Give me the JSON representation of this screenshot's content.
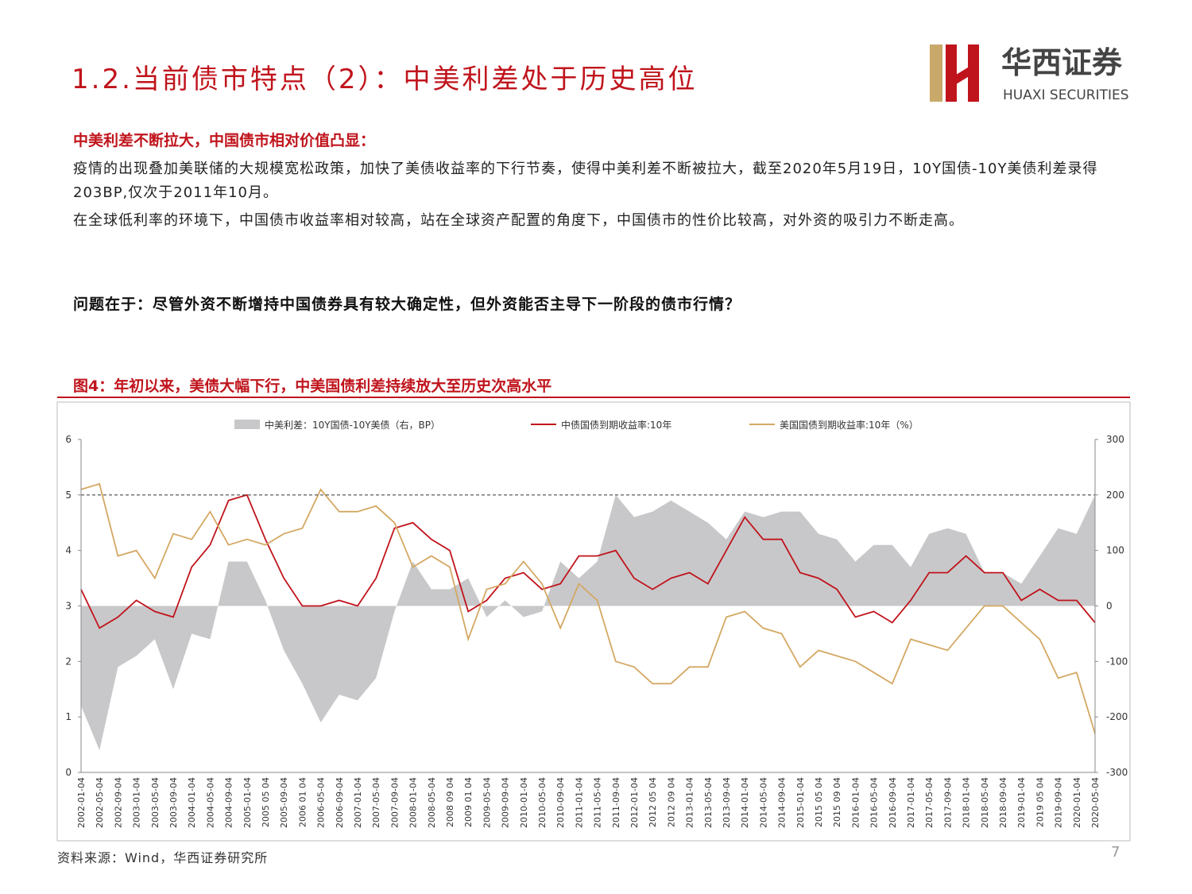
{
  "header": {
    "title": "1.2.当前债市特点（2）：中美利差处于历史高位",
    "logo_cn": "华西证券",
    "logo_en": "HUAXI SECURITIES"
  },
  "body": {
    "headline": "中美利差不断拉大，中国债市相对价值凸显：",
    "paragraphs": [
      "疫情的出现叠加美联储的大规模宽松政策，加快了美债收益率的下行节奏，使得中美利差不断被拉大，截至2020年5月19日，10Y国债-10Y美债利差录得203BP,仅次于2011年10月。",
      "在全球低利率的环境下，中国债市收益率相对较高，站在全球资产配置的角度下，中国债市的性价比较高，对外资的吸引力不断走高。"
    ],
    "question": "问题在于：尽管外资不断增持中国债券具有较大确定性，但外资能否主导下一阶段的债市行情？"
  },
  "figure": {
    "caption": "图4：年初以来，美债大幅下行，中美国债利差持续放大至历史次高水平"
  },
  "chart_data": {
    "type": "line",
    "categories": [
      "2002-01-04",
      "2002-05-04",
      "2002-09-04",
      "2003-01-04",
      "2003-05-04",
      "2003-09-04",
      "2004-01-04",
      "2004-05-04",
      "2004-09-04",
      "2005-01-04",
      "2005 05 04",
      "2005-09-04",
      "2006 01 04",
      "2006-05-04",
      "2006-09-04",
      "2007-01-04",
      "2007-05-04",
      "2007-09-04",
      "2008-01-04",
      "2008-05-04",
      "2008 09 04",
      "2009 01 04",
      "2009-05-04",
      "2009-09-04",
      "2010-01-04",
      "2010-05-04",
      "2010-09-04",
      "2011-01-04",
      "2011-05-04",
      "2011-09-04",
      "2012-01-04",
      "2012 05 04",
      "2012 09 04",
      "2013-01-04",
      "2013-05-04",
      "2013-09-04",
      "2014-01-04",
      "2014-05-04",
      "2014-09-04",
      "2015-01-04",
      "2015 05 04",
      "2015 09 04",
      "2016-01-04",
      "2016-05-04",
      "2016-09-04",
      "2017-01-04",
      "2017-05-04",
      "2017-09-04",
      "2018-01-04",
      "2018-05-04",
      "2018-09-04",
      "2019-01-04",
      "2019 05 04",
      "2019-09-04",
      "2020-01-04",
      "2020-05-04"
    ],
    "series": [
      {
        "name": "中美利差：10Y国债-10Y美债（右，BP）",
        "color": "#c8c8ca",
        "type": "area",
        "axis": "y2",
        "values": [
          -180,
          -260,
          -110,
          -90,
          -60,
          -150,
          -50,
          -60,
          80,
          80,
          10,
          -80,
          -140,
          -210,
          -160,
          -170,
          -130,
          -10,
          80,
          30,
          30,
          50,
          -20,
          10,
          -20,
          -10,
          80,
          50,
          80,
          200,
          160,
          170,
          190,
          170,
          150,
          120,
          170,
          160,
          170,
          170,
          130,
          120,
          80,
          110,
          110,
          70,
          130,
          140,
          130,
          60,
          60,
          40,
          90,
          140,
          130,
          200
        ]
      },
      {
        "name": "中债国债到期收益率:10年",
        "color": "#c0141c",
        "type": "line",
        "values": [
          3.3,
          2.6,
          2.8,
          3.1,
          2.9,
          2.8,
          3.7,
          4.1,
          4.9,
          5.0,
          4.2,
          3.5,
          3.0,
          3.0,
          3.1,
          3.0,
          3.5,
          4.4,
          4.5,
          4.2,
          4.0,
          2.9,
          3.1,
          3.5,
          3.6,
          3.3,
          3.4,
          3.9,
          3.9,
          4.0,
          3.5,
          3.3,
          3.5,
          3.6,
          3.4,
          4.0,
          4.6,
          4.2,
          4.2,
          3.6,
          3.5,
          3.3,
          2.8,
          2.9,
          2.7,
          3.1,
          3.6,
          3.6,
          3.9,
          3.6,
          3.6,
          3.1,
          3.3,
          3.1,
          3.1,
          2.7
        ]
      },
      {
        "name": "美国国债到期收益率:10年（%）",
        "color": "#d4a863",
        "type": "line",
        "values": [
          5.1,
          5.2,
          3.9,
          4.0,
          3.5,
          4.3,
          4.2,
          4.7,
          4.1,
          4.2,
          4.1,
          4.3,
          4.4,
          5.1,
          4.7,
          4.7,
          4.8,
          4.5,
          3.7,
          3.9,
          3.7,
          2.4,
          3.3,
          3.4,
          3.8,
          3.4,
          2.6,
          3.4,
          3.1,
          2.0,
          1.9,
          1.6,
          1.6,
          1.9,
          1.9,
          2.8,
          2.9,
          2.6,
          2.5,
          1.9,
          2.2,
          2.1,
          2.0,
          1.8,
          1.6,
          2.4,
          2.3,
          2.2,
          2.6,
          3.0,
          3.0,
          2.7,
          2.4,
          1.7,
          1.8,
          0.7
        ]
      }
    ],
    "ylim": [
      0,
      6
    ],
    "yticks": [
      0,
      1,
      2,
      3,
      4,
      5,
      6
    ],
    "y2lim": [
      -300,
      300
    ],
    "y2ticks": [
      -300,
      -200,
      -100,
      0,
      100,
      200,
      300
    ],
    "reference_line": 5,
    "legend": "top"
  },
  "source": "资料来源：Wind，华西证券研究所",
  "page_number": "7"
}
